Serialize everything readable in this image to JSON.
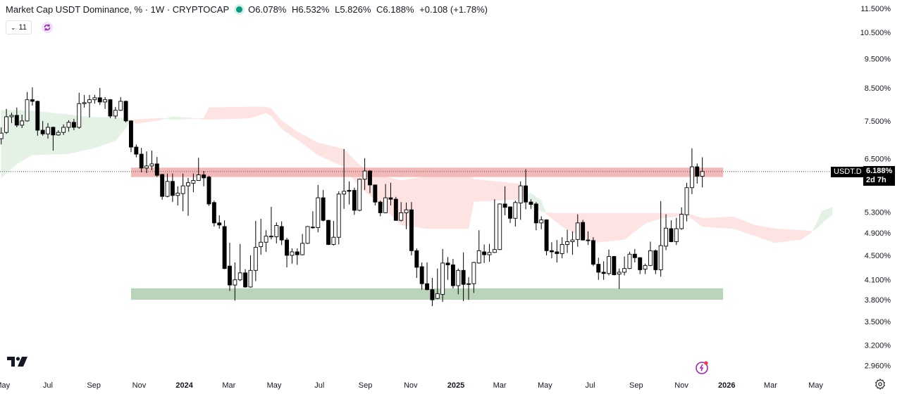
{
  "header": {
    "title": "Market Cap USDT Dominance, % · 1W · CRYPTOCAP",
    "status_color": "#089981",
    "open": "O6.078%",
    "high": "H6.532%",
    "low": "L5.826%",
    "close": "C6.188%",
    "change": "+0.108 (+1.78%)",
    "indicators_count": "11"
  },
  "price_line": {
    "symbol": "USDT.D",
    "value": "6.188%",
    "countdown": "2d 7h",
    "price": 6.188
  },
  "colors": {
    "up_body": "#ffffff",
    "down_body": "#000000",
    "wick": "#000000",
    "cloud_bull": "#e4f2e5",
    "cloud_bear": "#fde4e2",
    "resistance_zone": "#f2b1b1",
    "support_zone": "#b2cfb3",
    "accent": "#9c27b0"
  },
  "chart_data": {
    "type": "candlestick",
    "symbol": "USDT.D",
    "interval": "1W",
    "y_scale": "log",
    "ylim": [
      2.77,
      11.87
    ],
    "grid": false,
    "y_ticks": [
      "11.500%",
      "10.500%",
      "9.500%",
      "8.500%",
      "7.500%",
      "6.500%",
      "5.300%",
      "4.900%",
      "4.500%",
      "4.100%",
      "3.800%",
      "3.500%",
      "3.200%",
      "2.960%"
    ],
    "x_ticks": [
      {
        "label": "May",
        "date": "2023-05-01",
        "bold": false
      },
      {
        "label": "Jul",
        "date": "2023-07-01",
        "bold": false
      },
      {
        "label": "Sep",
        "date": "2023-09-01",
        "bold": false
      },
      {
        "label": "Nov",
        "date": "2023-11-01",
        "bold": false
      },
      {
        "label": "2024",
        "date": "2024-01-01",
        "bold": true
      },
      {
        "label": "Mar",
        "date": "2024-03-01",
        "bold": false
      },
      {
        "label": "May",
        "date": "2024-05-01",
        "bold": false
      },
      {
        "label": "Jul",
        "date": "2024-07-01",
        "bold": false
      },
      {
        "label": "Sep",
        "date": "2024-09-01",
        "bold": false
      },
      {
        "label": "Nov",
        "date": "2024-11-01",
        "bold": false
      },
      {
        "label": "2025",
        "date": "2025-01-01",
        "bold": true
      },
      {
        "label": "Mar",
        "date": "2025-03-01",
        "bold": false
      },
      {
        "label": "May",
        "date": "2025-05-01",
        "bold": false
      },
      {
        "label": "Jul",
        "date": "2025-07-01",
        "bold": false
      },
      {
        "label": "Sep",
        "date": "2025-09-01",
        "bold": false
      },
      {
        "label": "Nov",
        "date": "2025-11-01",
        "bold": false
      },
      {
        "label": "2026",
        "date": "2026-01-01",
        "bold": true
      },
      {
        "label": "Mar",
        "date": "2026-03-01",
        "bold": false
      },
      {
        "label": "May",
        "date": "2026-05-01",
        "bold": false
      }
    ],
    "candles_columns": [
      "date",
      "open",
      "high",
      "low",
      "close"
    ],
    "candles": [
      [
        "2023-05-01",
        7.01,
        7.32,
        6.86,
        7.16
      ],
      [
        "2023-05-08",
        7.18,
        7.85,
        7.14,
        7.62
      ],
      [
        "2023-05-15",
        7.62,
        7.74,
        7.44,
        7.66
      ],
      [
        "2023-05-22",
        7.66,
        7.89,
        7.32,
        7.38
      ],
      [
        "2023-05-29",
        7.38,
        7.68,
        7.3,
        7.5
      ],
      [
        "2023-06-05",
        7.5,
        8.37,
        7.48,
        8.13
      ],
      [
        "2023-06-12",
        8.13,
        8.52,
        7.95,
        8.08
      ],
      [
        "2023-06-19",
        8.08,
        8.1,
        7.09,
        7.24
      ],
      [
        "2023-06-26",
        7.24,
        7.5,
        7.09,
        7.14
      ],
      [
        "2023-07-03",
        7.14,
        7.44,
        7.01,
        7.32
      ],
      [
        "2023-07-10",
        7.32,
        7.34,
        6.7,
        7.11
      ],
      [
        "2023-07-17",
        7.11,
        7.24,
        7.09,
        7.18
      ],
      [
        "2023-07-24",
        7.18,
        7.4,
        7.11,
        7.32
      ],
      [
        "2023-07-31",
        7.32,
        7.52,
        7.2,
        7.46
      ],
      [
        "2023-08-07",
        7.46,
        7.56,
        7.24,
        7.32
      ],
      [
        "2023-08-14",
        7.32,
        8.35,
        7.28,
        8.01
      ],
      [
        "2023-08-21",
        8.01,
        8.28,
        7.89,
        8.04
      ],
      [
        "2023-08-28",
        8.04,
        8.28,
        7.6,
        8.13
      ],
      [
        "2023-09-04",
        8.13,
        8.28,
        8.01,
        8.19
      ],
      [
        "2023-09-11",
        8.19,
        8.5,
        7.97,
        8.06
      ],
      [
        "2023-09-18",
        8.06,
        8.21,
        7.85,
        8.13
      ],
      [
        "2023-09-25",
        8.13,
        8.15,
        7.58,
        7.64
      ],
      [
        "2023-10-02",
        7.64,
        7.91,
        7.56,
        7.81
      ],
      [
        "2023-10-09",
        7.81,
        8.21,
        7.79,
        8.08
      ],
      [
        "2023-10-16",
        8.08,
        8.1,
        7.46,
        7.5
      ],
      [
        "2023-10-23",
        7.5,
        7.52,
        6.66,
        6.79
      ],
      [
        "2023-10-30",
        6.79,
        6.86,
        6.53,
        6.61
      ],
      [
        "2023-11-06",
        6.61,
        6.77,
        6.17,
        6.27
      ],
      [
        "2023-11-13",
        6.27,
        6.68,
        6.15,
        6.32
      ],
      [
        "2023-11-20",
        6.32,
        6.7,
        6.22,
        6.37
      ],
      [
        "2023-11-27",
        6.37,
        6.54,
        6.06,
        6.1
      ],
      [
        "2023-12-04",
        6.12,
        6.13,
        5.56,
        5.63
      ],
      [
        "2023-12-11",
        5.63,
        6.14,
        5.61,
        5.96
      ],
      [
        "2023-12-18",
        5.96,
        6.14,
        5.51,
        5.65
      ],
      [
        "2023-12-25",
        5.65,
        5.85,
        5.44,
        5.7
      ],
      [
        "2024-01-01",
        5.69,
        6.14,
        5.32,
        5.86
      ],
      [
        "2024-01-08",
        5.86,
        6.04,
        5.23,
        5.93
      ],
      [
        "2024-01-15",
        5.92,
        6.14,
        5.72,
        5.98
      ],
      [
        "2024-01-22",
        5.98,
        6.52,
        5.97,
        6.11
      ],
      [
        "2024-01-29",
        6.11,
        6.2,
        5.85,
        6.04
      ],
      [
        "2024-02-05",
        6.06,
        6.09,
        5.43,
        5.47
      ],
      [
        "2024-02-12",
        5.5,
        5.54,
        5.02,
        5.09
      ],
      [
        "2024-02-19",
        5.09,
        5.24,
        4.98,
        5.05
      ],
      [
        "2024-02-26",
        5.02,
        5.14,
        4.27,
        4.28
      ],
      [
        "2024-03-04",
        4.32,
        4.72,
        3.93,
        4.02
      ],
      [
        "2024-03-11",
        4.02,
        4.38,
        3.79,
        4.1
      ],
      [
        "2024-03-18",
        4.1,
        4.7,
        4.08,
        4.21
      ],
      [
        "2024-03-25",
        4.21,
        4.27,
        3.98,
        3.99
      ],
      [
        "2024-04-01",
        3.99,
        4.5,
        3.98,
        4.25
      ],
      [
        "2024-04-08",
        4.25,
        5.13,
        4.08,
        4.64
      ],
      [
        "2024-04-15",
        4.65,
        5.17,
        4.51,
        4.73
      ],
      [
        "2024-04-22",
        4.73,
        4.95,
        4.56,
        4.84
      ],
      [
        "2024-04-29",
        4.83,
        5.41,
        4.78,
        4.84
      ],
      [
        "2024-05-06",
        4.83,
        5.1,
        4.71,
        5.04
      ],
      [
        "2024-05-13",
        5.02,
        5.12,
        4.68,
        4.77
      ],
      [
        "2024-05-20",
        4.77,
        4.81,
        4.3,
        4.5
      ],
      [
        "2024-05-27",
        4.5,
        4.62,
        4.36,
        4.56
      ],
      [
        "2024-06-03",
        4.56,
        4.62,
        4.34,
        4.51
      ],
      [
        "2024-06-10",
        4.51,
        4.88,
        4.5,
        4.71
      ],
      [
        "2024-06-17",
        4.71,
        5.03,
        4.7,
        5.02
      ],
      [
        "2024-06-24",
        5.01,
        5.32,
        4.98,
        5.0
      ],
      [
        "2024-07-01",
        5.0,
        5.88,
        4.91,
        5.6
      ],
      [
        "2024-07-08",
        5.6,
        5.77,
        5.12,
        5.14
      ],
      [
        "2024-07-15",
        5.14,
        5.15,
        4.68,
        4.69
      ],
      [
        "2024-07-22",
        4.69,
        5.13,
        4.67,
        4.82
      ],
      [
        "2024-07-29",
        4.82,
        5.74,
        4.69,
        5.68
      ],
      [
        "2024-08-05",
        5.68,
        6.74,
        5.37,
        5.74
      ],
      [
        "2024-08-12",
        5.76,
        5.96,
        5.46,
        5.74
      ],
      [
        "2024-08-19",
        5.76,
        5.82,
        5.25,
        5.34
      ],
      [
        "2024-08-26",
        5.34,
        6.02,
        5.32,
        6.01
      ],
      [
        "2024-09-02",
        6.01,
        6.51,
        5.77,
        6.2
      ],
      [
        "2024-09-09",
        6.2,
        6.22,
        5.7,
        5.88
      ],
      [
        "2024-09-16",
        5.88,
        5.89,
        5.44,
        5.51
      ],
      [
        "2024-09-23",
        5.51,
        5.54,
        5.22,
        5.29
      ],
      [
        "2024-09-30",
        5.29,
        5.9,
        5.28,
        5.6
      ],
      [
        "2024-10-07",
        5.6,
        5.93,
        5.44,
        5.57
      ],
      [
        "2024-10-14",
        5.57,
        5.62,
        5.13,
        5.14
      ],
      [
        "2024-10-21",
        5.14,
        5.51,
        5.12,
        5.29
      ],
      [
        "2024-10-28",
        5.29,
        5.5,
        4.97,
        5.35
      ],
      [
        "2024-11-04",
        5.35,
        5.51,
        4.5,
        4.58
      ],
      [
        "2024-11-11",
        4.58,
        4.62,
        4.13,
        4.3
      ],
      [
        "2024-11-18",
        4.31,
        4.38,
        3.95,
        4.04
      ],
      [
        "2024-11-25",
        4.04,
        4.38,
        3.94,
        3.95
      ],
      [
        "2024-12-02",
        3.95,
        4.13,
        3.71,
        3.8
      ],
      [
        "2024-12-09",
        3.82,
        4.28,
        3.81,
        3.89
      ],
      [
        "2024-12-16",
        3.88,
        4.61,
        3.77,
        4.37
      ],
      [
        "2024-12-23",
        4.37,
        4.47,
        4.1,
        4.34
      ],
      [
        "2024-12-30",
        4.34,
        4.44,
        3.97,
        4.01
      ],
      [
        "2025-01-06",
        4.01,
        4.28,
        3.88,
        4.25
      ],
      [
        "2025-01-13",
        4.25,
        4.55,
        3.78,
        4.03
      ],
      [
        "2025-01-20",
        4.03,
        4.14,
        3.8,
        4.04
      ],
      [
        "2025-01-27",
        4.04,
        4.39,
        3.9,
        4.38
      ],
      [
        "2025-02-03",
        4.37,
        4.95,
        4.36,
        4.58
      ],
      [
        "2025-02-10",
        4.56,
        4.69,
        4.37,
        4.51
      ],
      [
        "2025-02-17",
        4.51,
        4.7,
        4.39,
        4.55
      ],
      [
        "2025-02-24",
        4.55,
        5.57,
        4.54,
        4.6
      ],
      [
        "2025-03-03",
        4.6,
        5.48,
        4.59,
        5.47
      ],
      [
        "2025-03-10",
        5.47,
        5.85,
        5.24,
        5.4
      ],
      [
        "2025-03-17",
        5.41,
        5.42,
        5.09,
        5.18
      ],
      [
        "2025-03-24",
        5.18,
        5.54,
        5.02,
        5.5
      ],
      [
        "2025-03-31",
        5.49,
        5.96,
        5.15,
        5.86
      ],
      [
        "2025-04-07",
        5.86,
        6.24,
        5.36,
        5.51
      ],
      [
        "2025-04-14",
        5.51,
        5.57,
        5.37,
        5.46
      ],
      [
        "2025-04-21",
        5.47,
        5.51,
        4.95,
        5.09
      ],
      [
        "2025-04-28",
        5.09,
        5.22,
        4.97,
        5.15
      ],
      [
        "2025-05-05",
        5.15,
        5.16,
        4.5,
        4.58
      ],
      [
        "2025-05-12",
        4.58,
        4.73,
        4.45,
        4.56
      ],
      [
        "2025-05-19",
        4.56,
        4.77,
        4.38,
        4.53
      ],
      [
        "2025-05-26",
        4.53,
        4.82,
        4.45,
        4.69
      ],
      [
        "2025-06-02",
        4.69,
        4.96,
        4.54,
        4.74
      ],
      [
        "2025-06-09",
        4.74,
        4.93,
        4.51,
        4.77
      ],
      [
        "2025-06-16",
        4.78,
        5.26,
        4.65,
        5.09
      ],
      [
        "2025-06-23",
        5.1,
        5.15,
        4.76,
        4.77
      ],
      [
        "2025-06-30",
        4.77,
        4.93,
        4.68,
        4.76
      ],
      [
        "2025-07-07",
        4.76,
        4.82,
        4.32,
        4.35
      ],
      [
        "2025-07-14",
        4.35,
        4.46,
        4.1,
        4.22
      ],
      [
        "2025-07-21",
        4.22,
        4.4,
        4.1,
        4.2
      ],
      [
        "2025-07-28",
        4.2,
        4.6,
        4.17,
        4.48
      ],
      [
        "2025-08-04",
        4.48,
        4.49,
        4.17,
        4.18
      ],
      [
        "2025-08-11",
        4.19,
        4.28,
        3.96,
        4.22
      ],
      [
        "2025-08-18",
        4.22,
        4.48,
        4.17,
        4.28
      ],
      [
        "2025-08-25",
        4.28,
        4.56,
        4.27,
        4.52
      ],
      [
        "2025-09-01",
        4.52,
        4.61,
        4.38,
        4.46
      ],
      [
        "2025-09-08",
        4.46,
        4.47,
        4.19,
        4.26
      ],
      [
        "2025-09-15",
        4.27,
        4.36,
        4.19,
        4.33
      ],
      [
        "2025-09-22",
        4.33,
        4.74,
        4.32,
        4.58
      ],
      [
        "2025-09-29",
        4.58,
        4.6,
        4.19,
        4.26
      ],
      [
        "2025-10-06",
        4.26,
        5.53,
        4.15,
        4.67
      ],
      [
        "2025-10-13",
        4.66,
        5.26,
        4.59,
        4.99
      ],
      [
        "2025-10-20",
        4.98,
        5.14,
        4.73,
        4.74
      ],
      [
        "2025-10-27",
        4.74,
        5.19,
        4.68,
        4.98
      ],
      [
        "2025-11-03",
        4.98,
        5.4,
        4.96,
        5.26
      ],
      [
        "2025-11-10",
        5.25,
        5.93,
        5.12,
        5.82
      ],
      [
        "2025-11-17",
        5.82,
        6.76,
        5.68,
        6.3
      ],
      [
        "2025-11-24",
        6.3,
        6.38,
        5.91,
        6.078
      ],
      [
        "2025-12-01",
        6.078,
        6.532,
        5.826,
        6.188
      ]
    ],
    "ichimoku_cloud_columns": [
      "date",
      "span_a",
      "span_b"
    ],
    "ichimoku_cloud": [
      [
        "2023-05-01",
        7.81,
        6.04
      ],
      [
        "2023-05-22",
        7.81,
        6.37
      ],
      [
        "2023-06-12",
        7.79,
        6.59
      ],
      [
        "2023-07-31",
        7.68,
        6.62
      ],
      [
        "2023-09-04",
        7.6,
        6.77
      ],
      [
        "2023-10-02",
        7.6,
        6.96
      ],
      [
        "2023-10-16",
        7.58,
        7.3
      ],
      [
        "2023-10-23",
        7.52,
        7.52
      ],
      [
        "2023-10-30",
        7.42,
        7.54
      ],
      [
        "2023-12-04",
        7.54,
        7.58
      ],
      [
        "2023-12-18",
        7.62,
        7.54
      ],
      [
        "2024-01-15",
        7.58,
        7.56
      ],
      [
        "2024-01-29",
        7.54,
        7.58
      ],
      [
        "2024-02-05",
        7.54,
        7.89
      ],
      [
        "2024-04-01",
        7.58,
        7.91
      ],
      [
        "2024-04-22",
        7.74,
        7.91
      ],
      [
        "2024-04-29",
        7.64,
        7.85
      ],
      [
        "2024-05-13",
        7.28,
        7.5
      ],
      [
        "2024-06-03",
        6.99,
        7.2
      ],
      [
        "2024-07-01",
        6.59,
        6.9
      ],
      [
        "2024-08-05",
        6.3,
        6.74
      ],
      [
        "2024-08-26",
        5.83,
        6.34
      ],
      [
        "2024-09-23",
        5.47,
        6.09
      ],
      [
        "2024-10-21",
        5.05,
        5.98
      ],
      [
        "2024-11-25",
        4.98,
        6.07
      ],
      [
        "2025-01-20",
        4.98,
        6.07
      ],
      [
        "2025-01-27",
        5.52,
        6.01
      ],
      [
        "2025-03-31",
        5.57,
        5.9
      ],
      [
        "2025-04-07",
        5.66,
        5.76
      ],
      [
        "2025-04-14",
        5.7,
        5.42
      ],
      [
        "2025-04-28",
        5.54,
        5.32
      ],
      [
        "2025-05-05",
        5.26,
        5.29
      ],
      [
        "2025-05-26",
        5.02,
        5.28
      ],
      [
        "2025-07-07",
        4.72,
        5.28
      ],
      [
        "2025-08-18",
        4.78,
        5.28
      ],
      [
        "2025-09-15",
        5.08,
        5.28
      ],
      [
        "2025-10-06",
        5.18,
        5.28
      ],
      [
        "2025-11-10",
        5.25,
        5.28
      ],
      [
        "2025-12-01",
        5.02,
        5.18
      ],
      [
        "2026-01-12",
        4.98,
        5.21
      ],
      [
        "2026-02-09",
        4.85,
        5.05
      ],
      [
        "2026-03-09",
        4.72,
        4.98
      ],
      [
        "2026-04-13",
        4.78,
        4.95
      ],
      [
        "2026-04-27",
        4.91,
        4.93
      ],
      [
        "2026-05-04",
        5.08,
        4.98
      ],
      [
        "2026-05-11",
        5.32,
        5.08
      ],
      [
        "2026-05-25",
        5.4,
        5.25
      ]
    ],
    "zones": [
      {
        "type": "resistance",
        "from": "2023-10-23",
        "to": "2025-12-29",
        "low": 6.06,
        "high": 6.28
      },
      {
        "type": "support",
        "from": "2023-10-23",
        "to": "2025-12-29",
        "low": 3.8,
        "high": 3.97
      }
    ]
  }
}
